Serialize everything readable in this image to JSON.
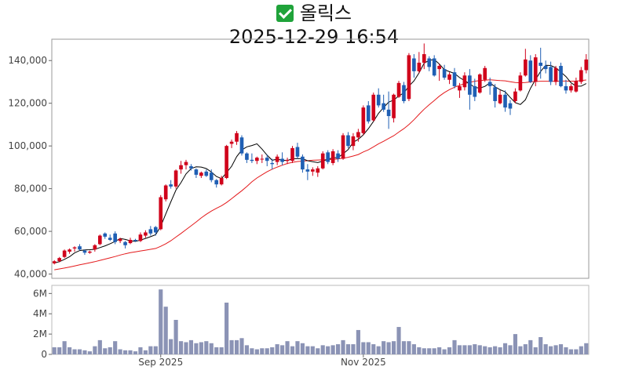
{
  "title": {
    "icon": "check-mark-icon",
    "name": "올릭스",
    "datetime": "2025-12-29 16:54"
  },
  "colors": {
    "up": "#d0021b",
    "down": "#1f5fb4",
    "ma5": "#000000",
    "ma20": "#e41a1c",
    "volume": "#8b93b5"
  },
  "chart_data": [
    {
      "type": "candlestick",
      "price_axis": {
        "ylim": [
          38000,
          150000
        ],
        "ticks": [
          "40,000",
          "60,000",
          "80,000",
          "100,000",
          "120,000",
          "140,000"
        ],
        "tick_values": [
          40000,
          60000,
          80000,
          100000,
          120000,
          140000
        ]
      },
      "x_ticks": [
        {
          "label": "Sep 2025",
          "index": 21
        },
        {
          "label": "Nov 2025",
          "index": 61
        }
      ],
      "candles": [
        [
          45000,
          46500,
          44500,
          46000
        ],
        [
          46000,
          48000,
          45500,
          47500
        ],
        [
          48000,
          51500,
          47500,
          51000
        ],
        [
          50500,
          52000,
          49500,
          51500
        ],
        [
          52000,
          53000,
          50500,
          52500
        ],
        [
          53000,
          54000,
          51000,
          51500
        ],
        [
          51000,
          51500,
          49000,
          50000
        ],
        [
          50000,
          51000,
          49500,
          50500
        ],
        [
          51500,
          54000,
          50500,
          53500
        ],
        [
          54000,
          58500,
          53500,
          58000
        ],
        [
          59000,
          59500,
          56500,
          57500
        ],
        [
          57000,
          58500,
          55500,
          56000
        ],
        [
          59000,
          60000,
          54000,
          55000
        ],
        [
          55500,
          57000,
          54500,
          56500
        ],
        [
          55000,
          55500,
          52000,
          53500
        ],
        [
          54500,
          57000,
          54000,
          56000
        ],
        [
          56000,
          56500,
          55000,
          55500
        ],
        [
          55500,
          59500,
          55000,
          58500
        ],
        [
          58000,
          60500,
          57000,
          59500
        ],
        [
          61000,
          62500,
          58000,
          59000
        ],
        [
          62000,
          62500,
          58000,
          59500
        ],
        [
          61000,
          77000,
          60500,
          76000
        ],
        [
          75000,
          82000,
          74000,
          81500
        ],
        [
          82000,
          84000,
          80000,
          81000
        ],
        [
          81000,
          89000,
          80000,
          88500
        ],
        [
          89000,
          93000,
          87000,
          91000
        ],
        [
          91000,
          93500,
          89000,
          92500
        ],
        [
          90500,
          91500,
          88500,
          89500
        ],
        [
          89000,
          89500,
          85000,
          86500
        ],
        [
          86000,
          88000,
          85000,
          87500
        ],
        [
          88000,
          89000,
          85500,
          86000
        ],
        [
          87500,
          89000,
          83000,
          84000
        ],
        [
          84000,
          84500,
          80500,
          82000
        ],
        [
          82000,
          86000,
          81500,
          85000
        ],
        [
          85000,
          100500,
          84500,
          100000
        ],
        [
          101000,
          103000,
          99000,
          102000
        ],
        [
          102000,
          107000,
          100500,
          106000
        ],
        [
          104000,
          105000,
          95500,
          96500
        ],
        [
          96500,
          97000,
          92000,
          93500
        ],
        [
          93500,
          96500,
          92000,
          93000
        ],
        [
          93000,
          95000,
          91500,
          94500
        ],
        [
          94000,
          96000,
          92000,
          94000
        ],
        [
          94500,
          96000,
          90500,
          93000
        ],
        [
          92000,
          94000,
          89000,
          91500
        ],
        [
          92500,
          96000,
          91000,
          95000
        ],
        [
          94000,
          97000,
          91000,
          92500
        ],
        [
          93000,
          94500,
          91500,
          93500
        ],
        [
          93000,
          100000,
          92000,
          99000
        ],
        [
          99500,
          101500,
          94000,
          95000
        ],
        [
          95000,
          96000,
          87500,
          89000
        ],
        [
          89000,
          91500,
          84000,
          88000
        ],
        [
          88000,
          90000,
          86000,
          89000
        ],
        [
          87500,
          90500,
          85500,
          89500
        ],
        [
          89500,
          97500,
          89000,
          96500
        ],
        [
          97000,
          98000,
          91500,
          92500
        ],
        [
          92000,
          98500,
          91000,
          97500
        ],
        [
          96500,
          98000,
          92500,
          94000
        ],
        [
          94000,
          106000,
          93500,
          105000
        ],
        [
          105000,
          106500,
          99000,
          100000
        ],
        [
          100000,
          106000,
          98000,
          104500
        ],
        [
          104000,
          108000,
          102000,
          106500
        ],
        [
          106000,
          119000,
          105000,
          118000
        ],
        [
          119000,
          121000,
          110500,
          111500
        ],
        [
          112000,
          125000,
          111500,
          124000
        ],
        [
          124000,
          127000,
          118000,
          119000
        ],
        [
          120000,
          124000,
          116000,
          117000
        ],
        [
          117000,
          125500,
          108000,
          114000
        ],
        [
          113000,
          124500,
          111000,
          124000
        ],
        [
          123000,
          130500,
          122500,
          129500
        ],
        [
          128500,
          130000,
          120000,
          121000
        ],
        [
          122000,
          143500,
          121000,
          142500
        ],
        [
          141000,
          143000,
          132000,
          135000
        ],
        [
          135000,
          144000,
          134000,
          139000
        ],
        [
          139000,
          148000,
          136000,
          143000
        ],
        [
          141000,
          142000,
          135000,
          137000
        ],
        [
          141000,
          142500,
          132500,
          133000
        ],
        [
          136000,
          138500,
          130500,
          137500
        ],
        [
          136000,
          138000,
          131000,
          132000
        ],
        [
          131000,
          134500,
          129000,
          133500
        ],
        [
          134500,
          136500,
          127000,
          128000
        ],
        [
          126000,
          129500,
          122500,
          128000
        ],
        [
          127500,
          134500,
          126000,
          133000
        ],
        [
          133000,
          136000,
          117000,
          124000
        ],
        [
          128000,
          131500,
          121000,
          123000
        ],
        [
          125000,
          134000,
          124500,
          133500
        ],
        [
          131000,
          137500,
          130000,
          136500
        ],
        [
          130000,
          132000,
          124000,
          128000
        ],
        [
          127500,
          129000,
          118000,
          121000
        ],
        [
          120000,
          126000,
          119500,
          124000
        ],
        [
          124000,
          126000,
          116000,
          118000
        ],
        [
          120000,
          121500,
          114500,
          117500
        ],
        [
          121000,
          127000,
          120000,
          125500
        ],
        [
          126000,
          134500,
          125500,
          133000
        ],
        [
          133000,
          145500,
          132500,
          140500
        ],
        [
          140000,
          142500,
          129500,
          130000
        ],
        [
          130000,
          143000,
          128000,
          141500
        ],
        [
          139000,
          146000,
          131500,
          137500
        ],
        [
          137500,
          140000,
          134000,
          136000
        ],
        [
          137000,
          139500,
          128500,
          130000
        ],
        [
          130000,
          137500,
          128500,
          136500
        ],
        [
          137500,
          139000,
          127500,
          128000
        ],
        [
          128000,
          131000,
          124500,
          126000
        ],
        [
          126000,
          129000,
          125000,
          128000
        ],
        [
          125500,
          132000,
          125000,
          130500
        ],
        [
          130000,
          137000,
          129000,
          135500
        ],
        [
          135500,
          143000,
          134000,
          140500
        ]
      ],
      "ma5": [
        45200,
        45800,
        46900,
        48100,
        49900,
        51000,
        51300,
        51400,
        51600,
        52400,
        53200,
        54200,
        55300,
        56700,
        56200,
        55600,
        55300,
        55900,
        56700,
        57500,
        58400,
        62300,
        68200,
        73800,
        79300,
        82800,
        86900,
        89400,
        90200,
        90100,
        89400,
        87800,
        85700,
        84700,
        87500,
        90500,
        95000,
        98100,
        99600,
        100200,
        101000,
        98500,
        95700,
        93300,
        93800,
        93300,
        93200,
        94000,
        94100,
        94000,
        93100,
        92600,
        92200,
        92900,
        93800,
        94400,
        94600,
        96300,
        98300,
        101700,
        103100,
        105200,
        108100,
        111500,
        115300,
        118000,
        120500,
        121500,
        123400,
        124900,
        128000,
        130500,
        134200,
        138800,
        140100,
        140500,
        138400,
        135700,
        134800,
        134000,
        132000,
        130600,
        129100,
        127400,
        127100,
        127900,
        129600,
        127700,
        126300,
        125400,
        122700,
        120300,
        119400,
        121600,
        127000,
        131100,
        134900,
        137800,
        137700,
        136600,
        134600,
        132500,
        129600,
        128000,
        128000,
        129200
      ],
      "ma20": [
        42000,
        42400,
        42800,
        43300,
        43800,
        44300,
        44800,
        45300,
        45800,
        46400,
        47000,
        47600,
        48200,
        48900,
        49500,
        50000,
        50400,
        50800,
        51200,
        51600,
        52000,
        53000,
        54200,
        55600,
        57300,
        59000,
        60800,
        62600,
        64400,
        66300,
        68000,
        69500,
        70800,
        72000,
        73500,
        75300,
        77200,
        79000,
        81000,
        83200,
        85000,
        86500,
        87900,
        89100,
        90100,
        91000,
        91800,
        92300,
        92700,
        92900,
        93100,
        93300,
        93400,
        93500,
        93600,
        93700,
        93900,
        94300,
        94700,
        95300,
        96000,
        97200,
        98200,
        99600,
        101000,
        102200,
        103500,
        104800,
        106500,
        108100,
        110000,
        112300,
        114800,
        117200,
        119300,
        121300,
        123300,
        125000,
        126400,
        127500,
        128400,
        129200,
        129800,
        130300,
        130600,
        130800,
        131000,
        130800,
        130600,
        130500,
        130100,
        129700,
        129600,
        129700,
        130000,
        130200,
        130300,
        130300,
        130300,
        130300,
        130400,
        130400,
        130300,
        130400,
        130600,
        130900
      ]
    },
    {
      "type": "bar",
      "name": "volume",
      "ylim": [
        0,
        6800000
      ],
      "ticks": [
        "0",
        "2M",
        "4M",
        "6M"
      ],
      "tick_values": [
        0,
        2000000,
        4000000,
        6000000
      ],
      "values": [
        700000,
        700000,
        1300000,
        700000,
        500000,
        500000,
        400000,
        300000,
        800000,
        1400000,
        600000,
        700000,
        1300000,
        500000,
        400000,
        400000,
        300000,
        700000,
        400000,
        800000,
        800000,
        6400000,
        4700000,
        1500000,
        3400000,
        1300000,
        1200000,
        1400000,
        1100000,
        1200000,
        1300000,
        1100000,
        700000,
        700000,
        5100000,
        1400000,
        1400000,
        1600000,
        900000,
        600000,
        500000,
        600000,
        600000,
        700000,
        1000000,
        900000,
        1300000,
        800000,
        1300000,
        1100000,
        800000,
        800000,
        600000,
        900000,
        800000,
        900000,
        1000000,
        1400000,
        1000000,
        1000000,
        2400000,
        1200000,
        1200000,
        1000000,
        800000,
        1300000,
        1200000,
        1300000,
        2700000,
        1300000,
        1300000,
        1000000,
        700000,
        600000,
        600000,
        600000,
        700000,
        500000,
        700000,
        1400000,
        900000,
        900000,
        900000,
        1000000,
        900000,
        800000,
        700000,
        800000,
        700000,
        1100000,
        900000,
        2000000,
        800000,
        1000000,
        1400000,
        700000,
        1700000,
        1000000,
        800000,
        900000,
        1000000,
        700000,
        500000,
        500000,
        800000,
        1100000
      ]
    }
  ]
}
